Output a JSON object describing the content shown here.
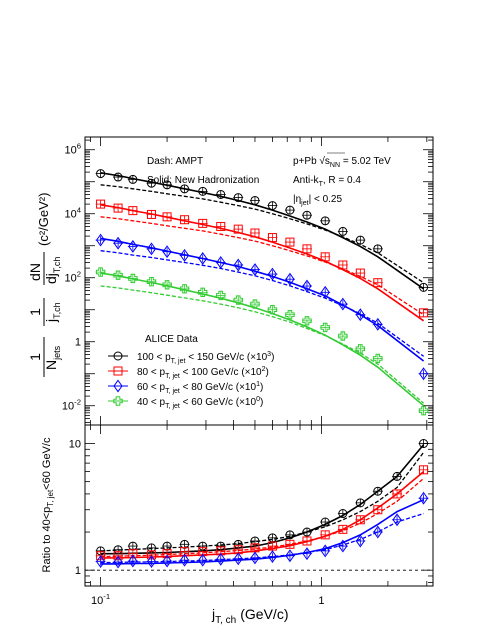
{
  "chart_data": {
    "type": "scatter",
    "x_label": "j",
    "x_label_sub": "T, ch",
    "x_label_unit": "(GeV/c)",
    "x_scale": "log",
    "x_range": [
      0.085,
      3.2
    ],
    "x_ticks": [
      {
        "value": 0.1,
        "base": "10",
        "exp": "-1"
      },
      {
        "value": 1,
        "label": "1"
      }
    ],
    "top_panel": {
      "y_scale": "log",
      "y_range": [
        0.0025,
        2500000
      ],
      "y_ticks": [
        {
          "value": 0.01,
          "base": "10",
          "exp": "-2"
        },
        {
          "value": 1,
          "label": "1"
        },
        {
          "value": 100,
          "base": "10",
          "exp": "2"
        },
        {
          "value": 10000,
          "base": "10",
          "exp": "4"
        },
        {
          "value": 1000000,
          "base": "10",
          "exp": "6"
        }
      ],
      "y_label": {
        "prefactor1": "1",
        "prefactor1_den": "N",
        "prefactor1_den_sub": "jets",
        "prefactor2": "1",
        "prefactor2_den": "j",
        "prefactor2_den_sub": "T,ch",
        "deriv_num": "dN",
        "deriv_den": "dj",
        "deriv_den_sub": "T,ch",
        "unit": "(c²/GeV²)"
      },
      "annotations": {
        "dash": "Dash: AMPT",
        "solid": "Solid: New Hadronization",
        "system": "p+Pb",
        "energy_prefix": "√s",
        "energy_sub": "NN",
        "energy_value": " = 5.02 TeV",
        "algo_prefix": "Anti-k",
        "algo_sub": "T",
        "algo_value": ", R = 0.4",
        "eta": "|η",
        "eta_sub": "jet",
        "eta_value": "| < 0.25"
      },
      "legend": {
        "title": "ALICE Data",
        "entries": [
          {
            "pre": "100 < p",
            "sub": "T, jet",
            "post": " < 150 GeV/c (×10",
            "sup": "3",
            "end": ")"
          },
          {
            "pre": "80 < p",
            "sub": "T, jet",
            "post": " < 100 GeV/c (×10",
            "sup": "2",
            "end": ")"
          },
          {
            "pre": "60 < p",
            "sub": "T, jet",
            "post": " < 80 GeV/c (×10",
            "sup": "1",
            "end": ")"
          },
          {
            "pre": "40 < p",
            "sub": "T, jet",
            "post": " < 60 GeV/c (×10",
            "sup": "0",
            "end": ")"
          }
        ]
      },
      "series": [
        {
          "name": "100 < pT,jet < 150 GeV/c (×10³)",
          "color": "#000000",
          "marker": "circle",
          "x": [
            0.1,
            0.12,
            0.14,
            0.17,
            0.2,
            0.24,
            0.29,
            0.35,
            0.42,
            0.5,
            0.6,
            0.72,
            0.86,
            1.04,
            1.25,
            1.5,
            1.8,
            2.9
          ],
          "y": [
            180000,
            140000,
            118000,
            90000,
            80000,
            60000,
            50000,
            40000,
            32000,
            26000,
            18000,
            13000,
            9000,
            6000,
            2800,
            1500,
            800,
            50
          ],
          "model_solid": [
            190000,
            155000,
            125000,
            97000,
            78000,
            60000,
            46000,
            35000,
            26000,
            19000,
            13000,
            8500,
            5500,
            3300,
            1800,
            950,
            450,
            45
          ],
          "model_dashed": [
            80000,
            70000,
            60000,
            50000,
            42000,
            35000,
            29000,
            23000,
            18000,
            14000,
            10000,
            7000,
            4800,
            3100,
            1900,
            1100,
            600,
            70
          ]
        },
        {
          "name": "80 < pT,jet < 100 GeV/c (×10²)",
          "color": "#ff0000",
          "marker": "square",
          "x": [
            0.1,
            0.12,
            0.14,
            0.17,
            0.2,
            0.24,
            0.29,
            0.35,
            0.42,
            0.5,
            0.6,
            0.72,
            0.86,
            1.04,
            1.25,
            1.5,
            1.8,
            2.9
          ],
          "y": [
            20000,
            15000,
            12500,
            9500,
            8000,
            6500,
            5000,
            4000,
            3300,
            2500,
            1800,
            1300,
            800,
            450,
            250,
            140,
            70,
            8
          ],
          "model_solid": [
            19000,
            15500,
            12500,
            9800,
            7800,
            6000,
            4600,
            3500,
            2600,
            1900,
            1300,
            850,
            550,
            330,
            180,
            95,
            45,
            4.5
          ],
          "model_dashed": [
            8000,
            7000,
            6000,
            5000,
            4200,
            3500,
            2900,
            2300,
            1800,
            1400,
            1000,
            700,
            480,
            310,
            190,
            110,
            60,
            7
          ]
        },
        {
          "name": "60 < pT,jet < 80 GeV/c (×10¹)",
          "color": "#0000ff",
          "marker": "diamond",
          "x": [
            0.1,
            0.12,
            0.14,
            0.17,
            0.2,
            0.24,
            0.29,
            0.35,
            0.42,
            0.5,
            0.6,
            0.72,
            0.86,
            1.04,
            1.25,
            1.5,
            1.8,
            2.9
          ],
          "y": [
            1500,
            1200,
            950,
            800,
            650,
            500,
            400,
            300,
            250,
            180,
            130,
            90,
            55,
            35,
            15,
            7,
            3.5,
            0.1
          ],
          "model_solid": [
            1700,
            1380,
            1100,
            860,
            680,
            520,
            400,
            300,
            225,
            160,
            110,
            72,
            45,
            27,
            14,
            7,
            3.2,
            0.25
          ],
          "model_dashed": [
            700,
            600,
            510,
            430,
            360,
            300,
            245,
            195,
            150,
            115,
            82,
            56,
            37,
            23,
            13.5,
            7.5,
            3.8,
            0.35
          ]
        },
        {
          "name": "40 < pT,jet < 60 GeV/c (×10⁰)",
          "color": "#33cc33",
          "marker": "cross",
          "x": [
            0.1,
            0.12,
            0.14,
            0.17,
            0.2,
            0.24,
            0.29,
            0.35,
            0.42,
            0.5,
            0.6,
            0.72,
            0.86,
            1.04,
            1.25,
            1.5,
            1.8,
            2.9
          ],
          "y": [
            150,
            120,
            95,
            75,
            60,
            45,
            35,
            28,
            20,
            15,
            10,
            7,
            4.5,
            2.8,
            1.5,
            0.6,
            0.3,
            0.007
          ],
          "model_solid": [
            140,
            115,
            92,
            71,
            56,
            42,
            31,
            23,
            16.5,
            11.5,
            7.6,
            4.8,
            2.9,
            1.6,
            0.8,
            0.38,
            0.16,
            0.01
          ],
          "model_dashed": [
            55,
            48,
            41,
            34,
            28.5,
            23.5,
            19,
            15,
            11.5,
            8.6,
            6.1,
            4.1,
            2.6,
            1.55,
            0.85,
            0.44,
            0.2,
            0.012
          ]
        }
      ]
    },
    "bottom_panel": {
      "y_scale": "log",
      "y_range": [
        0.75,
        14
      ],
      "y_ticks": [
        {
          "value": 1,
          "label": "1"
        },
        {
          "value": 10,
          "label": "10"
        }
      ],
      "y_label_pre": "Ratio to 40<p",
      "y_label_sub": "T, jet",
      "y_label_post": "<60 GeV/c",
      "reference_line": 1,
      "series": [
        {
          "name": "100-150",
          "color": "#000000",
          "marker": "circle",
          "x": [
            0.1,
            0.12,
            0.14,
            0.17,
            0.2,
            0.24,
            0.29,
            0.35,
            0.42,
            0.5,
            0.6,
            0.72,
            0.86,
            1.04,
            1.25,
            1.5,
            1.8,
            2.2,
            2.9
          ],
          "y": [
            1.42,
            1.45,
            1.55,
            1.5,
            1.55,
            1.6,
            1.55,
            1.55,
            1.6,
            1.7,
            1.8,
            1.9,
            2.0,
            2.4,
            2.8,
            3.4,
            4.2,
            5.5,
            10.0
          ],
          "model_solid": [
            1.35,
            1.35,
            1.36,
            1.37,
            1.38,
            1.4,
            1.42,
            1.45,
            1.5,
            1.55,
            1.65,
            1.8,
            2.0,
            2.3,
            2.7,
            3.3,
            4.2,
            5.5,
            9.8
          ],
          "model_dashed": [
            1.42,
            1.44,
            1.46,
            1.48,
            1.5,
            1.52,
            1.55,
            1.58,
            1.62,
            1.68,
            1.75,
            1.85,
            2.0,
            2.2,
            2.5,
            2.9,
            3.5,
            4.5,
            8.5
          ]
        },
        {
          "name": "80-100",
          "color": "#ff0000",
          "marker": "square",
          "x": [
            0.1,
            0.12,
            0.14,
            0.17,
            0.2,
            0.24,
            0.29,
            0.35,
            0.42,
            0.5,
            0.6,
            0.72,
            0.86,
            1.04,
            1.25,
            1.5,
            1.8,
            2.2,
            2.9
          ],
          "y": [
            1.3,
            1.3,
            1.35,
            1.32,
            1.35,
            1.4,
            1.4,
            1.42,
            1.45,
            1.5,
            1.55,
            1.6,
            1.7,
            1.9,
            2.1,
            2.5,
            3.0,
            4.0,
            6.2
          ],
          "model_solid": [
            1.25,
            1.25,
            1.26,
            1.27,
            1.28,
            1.3,
            1.32,
            1.34,
            1.37,
            1.42,
            1.48,
            1.56,
            1.68,
            1.85,
            2.1,
            2.5,
            3.1,
            4.0,
            6.0
          ],
          "model_dashed": [
            1.28,
            1.29,
            1.3,
            1.31,
            1.33,
            1.35,
            1.37,
            1.4,
            1.43,
            1.47,
            1.52,
            1.6,
            1.7,
            1.85,
            2.05,
            2.35,
            2.8,
            3.5,
            5.3
          ]
        },
        {
          "name": "60-80",
          "color": "#0000ff",
          "marker": "diamond",
          "x": [
            0.1,
            0.12,
            0.14,
            0.17,
            0.2,
            0.24,
            0.29,
            0.35,
            0.42,
            0.5,
            0.6,
            0.72,
            0.86,
            1.04,
            1.25,
            1.5,
            1.8,
            2.2,
            2.9
          ],
          "y": [
            1.17,
            1.16,
            1.18,
            1.17,
            1.18,
            1.2,
            1.2,
            1.22,
            1.23,
            1.25,
            1.28,
            1.3,
            1.35,
            1.42,
            1.55,
            1.7,
            2.0,
            2.5,
            3.7
          ],
          "model_solid": [
            1.12,
            1.12,
            1.13,
            1.13,
            1.14,
            1.15,
            1.16,
            1.18,
            1.2,
            1.22,
            1.26,
            1.31,
            1.38,
            1.48,
            1.65,
            1.9,
            2.3,
            2.9,
            3.6
          ],
          "model_dashed": [
            1.15,
            1.15,
            1.16,
            1.16,
            1.17,
            1.18,
            1.19,
            1.21,
            1.23,
            1.25,
            1.28,
            1.32,
            1.38,
            1.45,
            1.58,
            1.75,
            2.0,
            2.4,
            2.8
          ]
        }
      ]
    }
  }
}
